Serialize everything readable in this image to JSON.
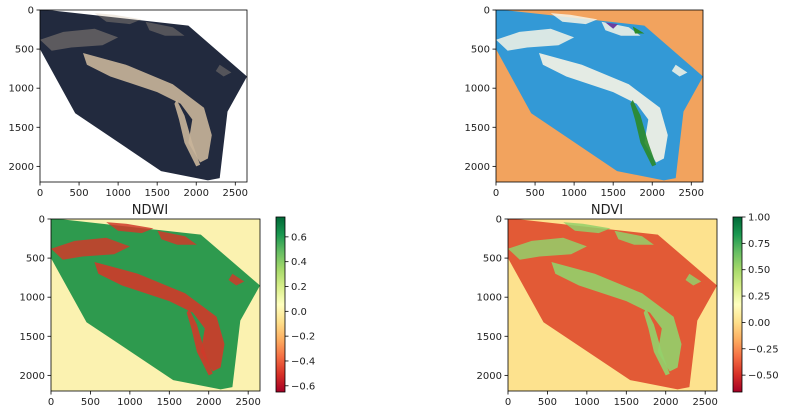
{
  "colors": {
    "background": "#ffffff",
    "axis": "#000000",
    "raw_land": "#222a3e",
    "raw_sand": "#c9b59a",
    "class_water": "#3399d6",
    "class_nodata": "#f2a35e",
    "class_veg": "#2a8a2a",
    "class_sand": "#f7f4e6",
    "class_purple": "#6b3fa0",
    "ndwi_bg": "#fbf2b0",
    "ndwi_water": "#2e9a4e",
    "ndwi_land": "#cf3a2a",
    "ndvi_bg": "#fde28e",
    "ndvi_water": "#e25a36",
    "ndvi_land": "#93d06a"
  },
  "chart_data": [
    {
      "id": "rgb",
      "type": "heatmap",
      "title": "",
      "xlabel": "",
      "ylabel": "",
      "xlim": [
        0,
        2650
      ],
      "ylim": [
        2200,
        0
      ],
      "xticks": [
        "0",
        "500",
        "1000",
        "1500",
        "2000",
        "2500"
      ],
      "xtick_values": [
        0,
        500,
        1000,
        1500,
        2000,
        2500
      ],
      "yticks": [
        "0",
        "500",
        "1000",
        "1500",
        "2000"
      ],
      "ytick_values": [
        0,
        500,
        1000,
        1500,
        2000
      ],
      "grid": false
    },
    {
      "id": "classes",
      "type": "heatmap",
      "title": "",
      "xlabel": "",
      "ylabel": "",
      "xlim": [
        0,
        2650
      ],
      "ylim": [
        2200,
        0
      ],
      "xticks": [
        "0",
        "500",
        "1000",
        "1500",
        "2000",
        "2500"
      ],
      "xtick_values": [
        0,
        500,
        1000,
        1500,
        2000,
        2500
      ],
      "yticks": [
        "0",
        "500",
        "1000",
        "1500",
        "2000"
      ],
      "ytick_values": [
        0,
        500,
        1000,
        1500,
        2000
      ],
      "grid": false
    },
    {
      "id": "ndwi",
      "type": "heatmap",
      "title": "NDWI",
      "xlabel": "",
      "ylabel": "",
      "xlim": [
        0,
        2650
      ],
      "ylim": [
        2200,
        0
      ],
      "xticks": [
        "0",
        "500",
        "1000",
        "1500",
        "2000",
        "2500"
      ],
      "xtick_values": [
        0,
        500,
        1000,
        1500,
        2000,
        2500
      ],
      "yticks": [
        "0",
        "500",
        "1000",
        "1500",
        "2000"
      ],
      "ytick_values": [
        0,
        500,
        1000,
        1500,
        2000
      ],
      "colorbar": {
        "colormap": "RdYlGn",
        "range": [
          -0.65,
          0.76
        ],
        "ticks": [
          "0.6",
          "0.4",
          "0.2",
          "0.0",
          "−0.2",
          "−0.4",
          "−0.6"
        ],
        "tick_values": [
          0.6,
          0.4,
          0.2,
          0.0,
          -0.2,
          -0.4,
          -0.6
        ]
      },
      "grid": false
    },
    {
      "id": "ndvi",
      "type": "heatmap",
      "title": "NDVI",
      "xlabel": "",
      "ylabel": "",
      "xlim": [
        0,
        2650
      ],
      "ylim": [
        2200,
        0
      ],
      "xticks": [
        "0",
        "500",
        "1000",
        "1500",
        "2000",
        "2500"
      ],
      "xtick_values": [
        0,
        500,
        1000,
        1500,
        2000,
        2500
      ],
      "yticks": [
        "0",
        "500",
        "1000",
        "1500",
        "2000"
      ],
      "ytick_values": [
        0,
        500,
        1000,
        1500,
        2000
      ],
      "colorbar": {
        "colormap": "RdYlGn",
        "range": [
          -0.66,
          1.0
        ],
        "ticks": [
          "1.00",
          "0.75",
          "0.50",
          "0.25",
          "0.00",
          "−0.25",
          "−0.50"
        ],
        "tick_values": [
          1.0,
          0.75,
          0.5,
          0.25,
          0.0,
          -0.25,
          -0.5
        ]
      },
      "grid": false
    }
  ]
}
